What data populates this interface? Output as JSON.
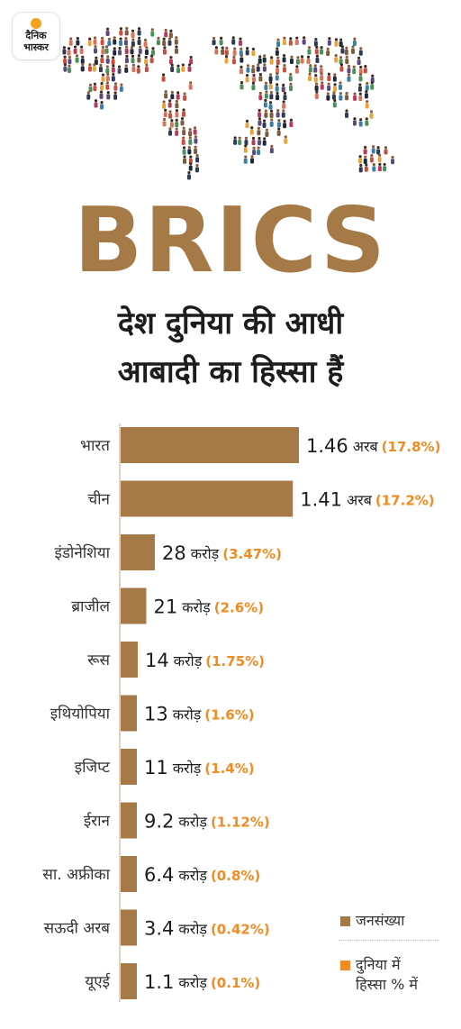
{
  "logo": {
    "line1": "दैनिक",
    "line2": "भास्कर"
  },
  "colors": {
    "bar": "#a57a47",
    "percent": "#f28b22",
    "text": "#1d1d1d"
  },
  "heading": {
    "brics": "BRICS",
    "line1": "देश दुनिया की आधी",
    "line2": "आबादी का हिस्सा हैं"
  },
  "chart_data": {
    "type": "bar",
    "orientation": "horizontal",
    "unit_note": "population",
    "categories": [
      "भारत",
      "चीन",
      "इंडोनेशिया",
      "ब्राजील",
      "रूस",
      "इथियोपिया",
      "इजिप्ट",
      "ईरान",
      "सा. अफ्रीका",
      "सऊदी अरब",
      "यूएई"
    ],
    "series": [
      {
        "name": "जनसंख्या",
        "values_crore": [
          146,
          141,
          28,
          21,
          14,
          13,
          11,
          9.2,
          6.4,
          3.4,
          1.1
        ]
      },
      {
        "name": "दुनिया में हिस्सा % में",
        "values_percent": [
          17.8,
          17.2,
          3.47,
          2.6,
          1.75,
          1.6,
          1.4,
          1.12,
          0.8,
          0.42,
          0.1
        ]
      }
    ],
    "value_labels": [
      "1.46",
      "1.41",
      "28",
      "21",
      "14",
      "13",
      "11",
      "9.2",
      "6.4",
      "3.4",
      "1.1"
    ],
    "unit_labels": [
      "अरब",
      "अरब",
      "करोड़",
      "करोड़",
      "करोड़",
      "करोड़",
      "करोड़",
      "करोड़",
      "करोड़",
      "करोड़",
      "करोड़"
    ],
    "percent_labels": [
      "(17.8%)",
      "(17.2%)",
      "(3.47%)",
      "(2.6%)",
      "(1.75%)",
      "(1.6%)",
      "(1.4%)",
      "(1.12%)",
      "(0.8%)",
      "(0.42%)",
      "(0.1%)"
    ]
  },
  "legend": {
    "population": "जनसंख्या",
    "share_line1": "दुनिया में",
    "share_line2": "हिस्सा % में"
  }
}
